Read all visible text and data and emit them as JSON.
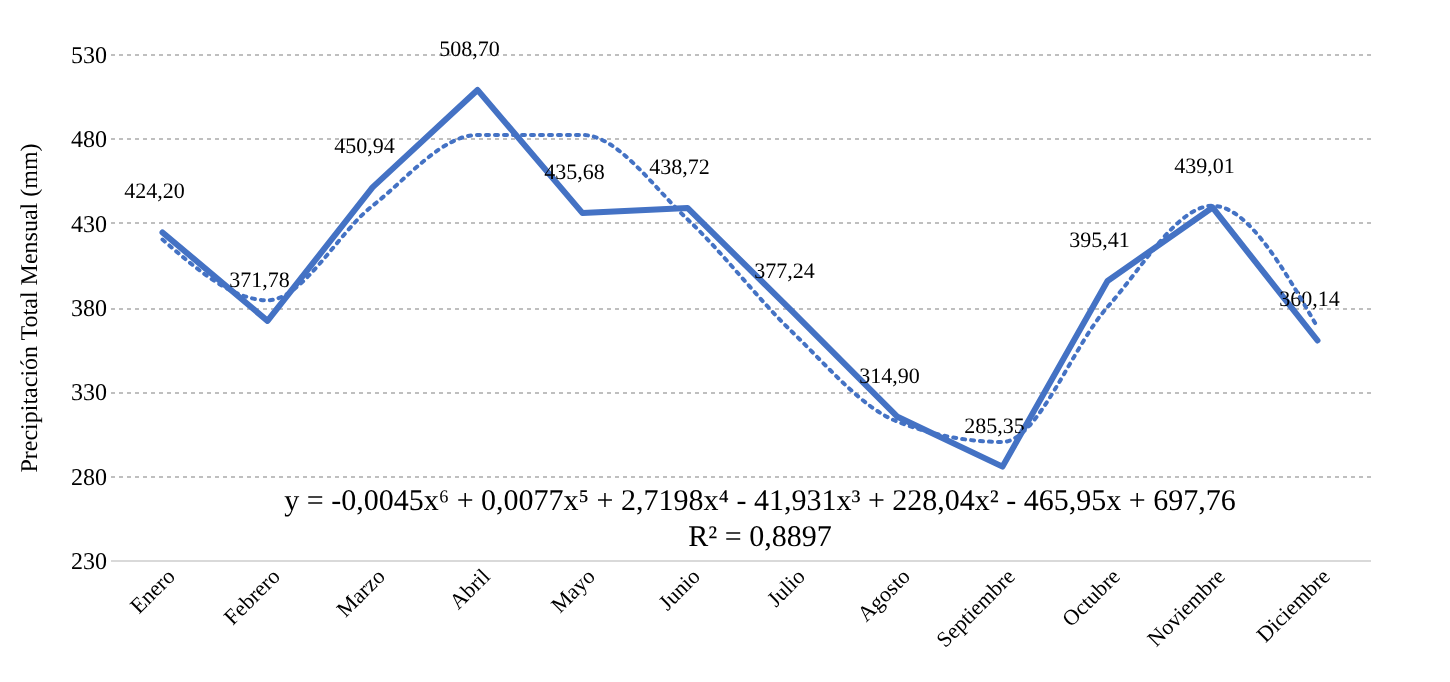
{
  "chart_data": {
    "type": "line",
    "ylabel": "Precipitación Total Mensual (mm)",
    "categories": [
      "Enero",
      "Febrero",
      "Marzo",
      "Abril",
      "Mayo",
      "Junio",
      "Julio",
      "Agosto",
      "Septiembre",
      "Octubre",
      "Noviembre",
      "Diciembre"
    ],
    "series": [
      {
        "color": "#4472c4",
        "line_style": "solid",
        "values": [
          424.2,
          371.78,
          450.94,
          508.7,
          435.68,
          438.72,
          377.24,
          314.9,
          285.35,
          395.41,
          439.01,
          360.14
        ],
        "value_labels": [
          "424,20",
          "371,78",
          "450,94",
          "508,70",
          "435,68",
          "438,72",
          "377,24",
          "314,90",
          "285,35",
          "395,41",
          "439,01",
          "360,14"
        ]
      },
      {
        "type": "line",
        "color": "#4472c4",
        "line_style": "dotted",
        "x": [
          "Enero",
          "Febrero",
          "Marzo",
          "Abril",
          "Mayo",
          "Junio",
          "Julio",
          "Agosto",
          "Septiembre",
          "Octubre",
          "Noviembre",
          "Diciembre"
        ],
        "values": [
          420,
          384,
          440,
          482,
          482,
          432,
          365,
          312,
          300,
          380,
          440,
          368
        ]
      }
    ],
    "ylim": [
      230,
      530
    ],
    "yticks": [
      230,
      280,
      330,
      380,
      430,
      480,
      530
    ],
    "grid": "y",
    "annotations": [
      "y = -0,0045x⁶ + 0,0077x⁵ + 2,7198x⁴ - 41,931x³ + 228,04x² - 465,95x + 697,76",
      "R² = 0,8897"
    ]
  }
}
